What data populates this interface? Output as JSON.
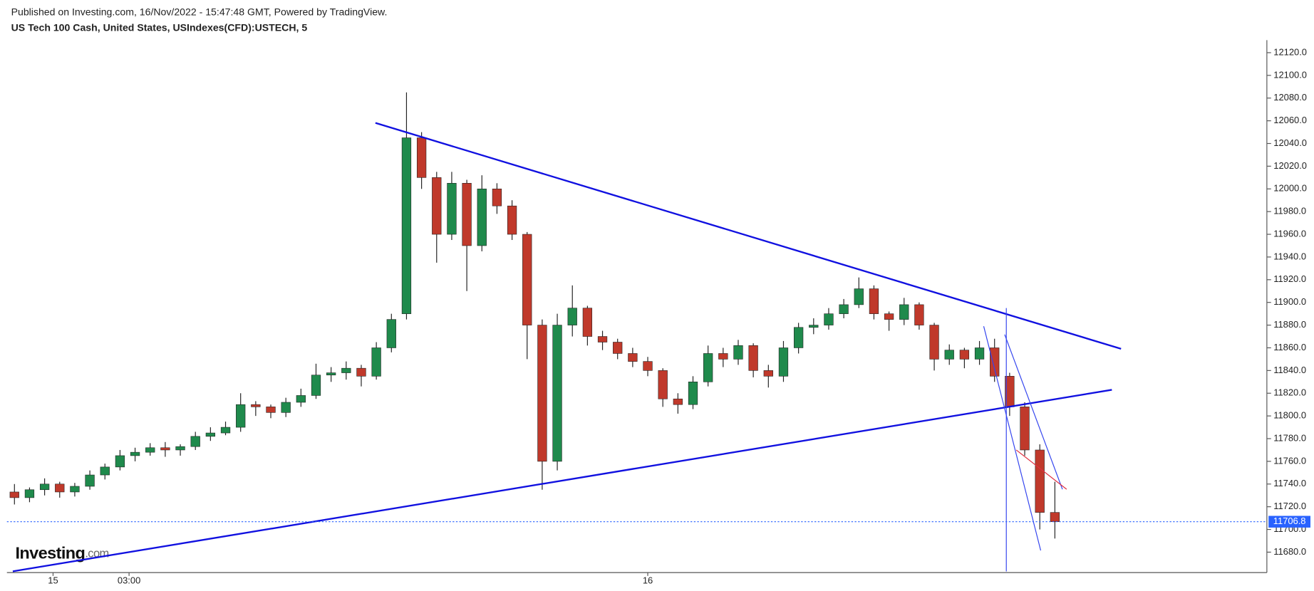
{
  "header": {
    "published": "Published on Investing.com, 16/Nov/2022 - 15:47:48 GMT, Powered by TradingView.",
    "instrument": "US Tech 100 Cash, United States, USIndexes(CFD):USTECH, 5"
  },
  "logo": {
    "name": "Investing",
    "suffix": ".com"
  },
  "chart_data": {
    "type": "candlestick",
    "up_color": "#1f8a4c",
    "down_color": "#c0392b",
    "wick_color": "#222222",
    "open": [
      11733,
      11728,
      11735,
      11740,
      11733,
      11738,
      11748,
      11755,
      11765,
      11768,
      11772,
      11770,
      11773,
      11782,
      11785,
      11790,
      11810,
      11808,
      11803,
      11812,
      11818,
      11836,
      11838,
      11842,
      11835,
      11860,
      11890,
      12045,
      12010,
      11960,
      12005,
      11950,
      12000,
      11985,
      11960,
      11880,
      11760,
      11880,
      11895,
      11870,
      11865,
      11855,
      11848,
      11840,
      11815,
      11810,
      11830,
      11855,
      11850,
      11862,
      11840,
      11835,
      11860,
      11878,
      11880,
      11890,
      11898,
      11912,
      11890,
      11885,
      11898,
      11880,
      11850,
      11858,
      11850,
      11860,
      11835,
      11808,
      11770,
      11715
    ],
    "high": [
      11740,
      11737,
      11745,
      11742,
      11741,
      11752,
      11758,
      11770,
      11772,
      11776,
      11777,
      11775,
      11786,
      11790,
      11795,
      11820,
      11813,
      11810,
      11816,
      11824,
      11846,
      11843,
      11848,
      11845,
      11865,
      11890,
      12085,
      12050,
      12015,
      12015,
      12008,
      12012,
      12005,
      11990,
      11962,
      11885,
      11890,
      11915,
      11897,
      11875,
      11868,
      11860,
      11852,
      11842,
      11820,
      11835,
      11862,
      11860,
      11867,
      11864,
      11845,
      11866,
      11882,
      11886,
      11895,
      11903,
      11922,
      11915,
      11892,
      11904,
      11900,
      11882,
      11863,
      11860,
      11866,
      11868,
      11838,
      11812,
      11775,
      11742
    ],
    "low": [
      11722,
      11724,
      11730,
      11728,
      11729,
      11735,
      11744,
      11752,
      11760,
      11765,
      11764,
      11765,
      11770,
      11778,
      11783,
      11786,
      11800,
      11798,
      11799,
      11808,
      11815,
      11830,
      11832,
      11826,
      11832,
      11856,
      11885,
      12000,
      11935,
      11955,
      11910,
      11945,
      11978,
      11955,
      11850,
      11735,
      11752,
      11870,
      11862,
      11858,
      11850,
      11843,
      11835,
      11808,
      11802,
      11806,
      11826,
      11843,
      11845,
      11834,
      11825,
      11830,
      11855,
      11872,
      11876,
      11886,
      11895,
      11885,
      11875,
      11880,
      11876,
      11840,
      11845,
      11842,
      11845,
      11830,
      11800,
      11765,
      11700,
      11692
    ],
    "close": [
      11728,
      11735,
      11740,
      11733,
      11738,
      11748,
      11755,
      11765,
      11768,
      11772,
      11770,
      11773,
      11782,
      11785,
      11790,
      11810,
      11808,
      11803,
      11812,
      11818,
      11836,
      11838,
      11842,
      11835,
      11860,
      11885,
      12045,
      12010,
      11960,
      12005,
      11950,
      12000,
      11985,
      11960,
      11880,
      11760,
      11880,
      11895,
      11870,
      11865,
      11855,
      11848,
      11840,
      11815,
      11810,
      11830,
      11855,
      11850,
      11862,
      11840,
      11835,
      11860,
      11878,
      11880,
      11890,
      11898,
      11912,
      11890,
      11885,
      11898,
      11880,
      11850,
      11858,
      11850,
      11860,
      11835,
      11808,
      11770,
      11715,
      11706.8
    ],
    "xlim": [
      -0.5,
      83.06
    ],
    "xticks": [
      {
        "value": 2.56,
        "label": "15"
      },
      {
        "value": 7.6,
        "label": "03:00"
      },
      {
        "value": 42.0,
        "label": "16"
      }
    ],
    "ylim": [
      11662,
      12131
    ],
    "yticks": [
      {
        "value": 11680,
        "label": "11680.0"
      },
      {
        "value": 11700,
        "label": "11700.0"
      },
      {
        "value": 11720,
        "label": "11720.0"
      },
      {
        "value": 11740,
        "label": "11740.0"
      },
      {
        "value": 11760,
        "label": "11760.0"
      },
      {
        "value": 11780,
        "label": "11780.0"
      },
      {
        "value": 11800,
        "label": "11800.0"
      },
      {
        "value": 11820,
        "label": "11820.0"
      },
      {
        "value": 11840,
        "label": "11840.0"
      },
      {
        "value": 11860,
        "label": "11860.0"
      },
      {
        "value": 11880,
        "label": "11880.0"
      },
      {
        "value": 11900,
        "label": "11900.0"
      },
      {
        "value": 11920,
        "label": "11920.0"
      },
      {
        "value": 11940,
        "label": "11940.0"
      },
      {
        "value": 11960,
        "label": "11960.0"
      },
      {
        "value": 11980,
        "label": "11980.0"
      },
      {
        "value": 12000,
        "label": "12000.0"
      },
      {
        "value": 12020,
        "label": "12020.0"
      },
      {
        "value": 12040,
        "label": "12040.0"
      },
      {
        "value": 12060,
        "label": "12060.0"
      },
      {
        "value": 12080,
        "label": "12080.0"
      },
      {
        "value": 12100,
        "label": "12100.0"
      },
      {
        "value": 12120,
        "label": "12120.0"
      }
    ],
    "last_price": 11706.8,
    "last_price_color": "#2962ff",
    "drawings": [
      {
        "color": "#1010e0",
        "width": 2,
        "x": [
          23.94,
          73.39
        ],
        "y": [
          12058.1,
          11859.1
        ]
      },
      {
        "color": "#1010e0",
        "width": 2,
        "x": [
          -0.11,
          72.78
        ],
        "y": [
          11663.1,
          11823.0
        ]
      },
      {
        "color": "#3344ee",
        "width": 1,
        "x": [
          64.28,
          68.06
        ],
        "y": [
          11879.0,
          11681.5
        ]
      },
      {
        "color": "#3344ee",
        "width": 1,
        "x": [
          65.67,
          69.5
        ],
        "y": [
          11871.7,
          11735.4
        ]
      },
      {
        "color": "#3344ee",
        "width": 1,
        "x": [
          65.78,
          65.78
        ],
        "y": [
          11895,
          11663
        ]
      },
      {
        "color": "#e03040",
        "width": 1,
        "x": [
          66.44,
          69.78
        ],
        "y": [
          11770,
          11735.4
        ]
      }
    ]
  }
}
